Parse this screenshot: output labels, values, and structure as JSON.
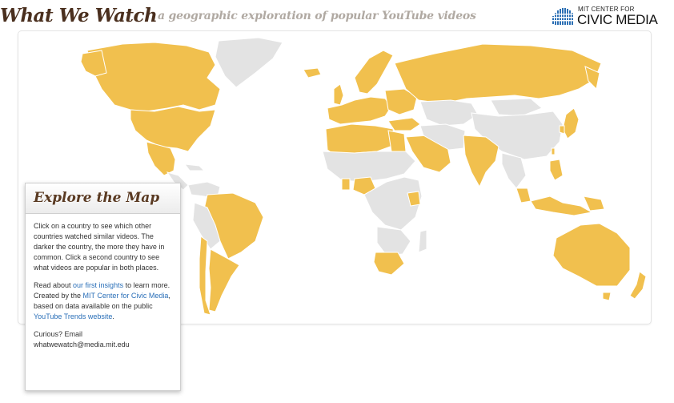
{
  "header": {
    "title": "What We Watch",
    "subtitle": "a geographic exploration of popular YouTube videos",
    "logo_line1": "MIT CENTER FOR",
    "logo_line2": "CIVIC MEDIA"
  },
  "colors": {
    "highlight": "#f1c04e",
    "inactive": "#e3e3e3",
    "title_brown": "#4a2f1e",
    "link_blue": "#2a6fb8"
  },
  "panel": {
    "title": "Explore the Map",
    "paragraph1": "Click on a country to see which other countries watched similar videos. The darker the country, the more they have in common. Click a second country to see what videos are popular in both places.",
    "p2_text1": "Read about ",
    "p2_link1": "our first insights",
    "p2_text2": " to learn more. Created by the ",
    "p2_link2": "MIT Center for Civic Media",
    "p2_text3": ", based on data available on the public ",
    "p2_link3": "YouTube Trends website",
    "p2_text4": ".",
    "p3_line1": "Curious? Email",
    "p3_line2": "whatwewatch@media.mit.edu"
  }
}
